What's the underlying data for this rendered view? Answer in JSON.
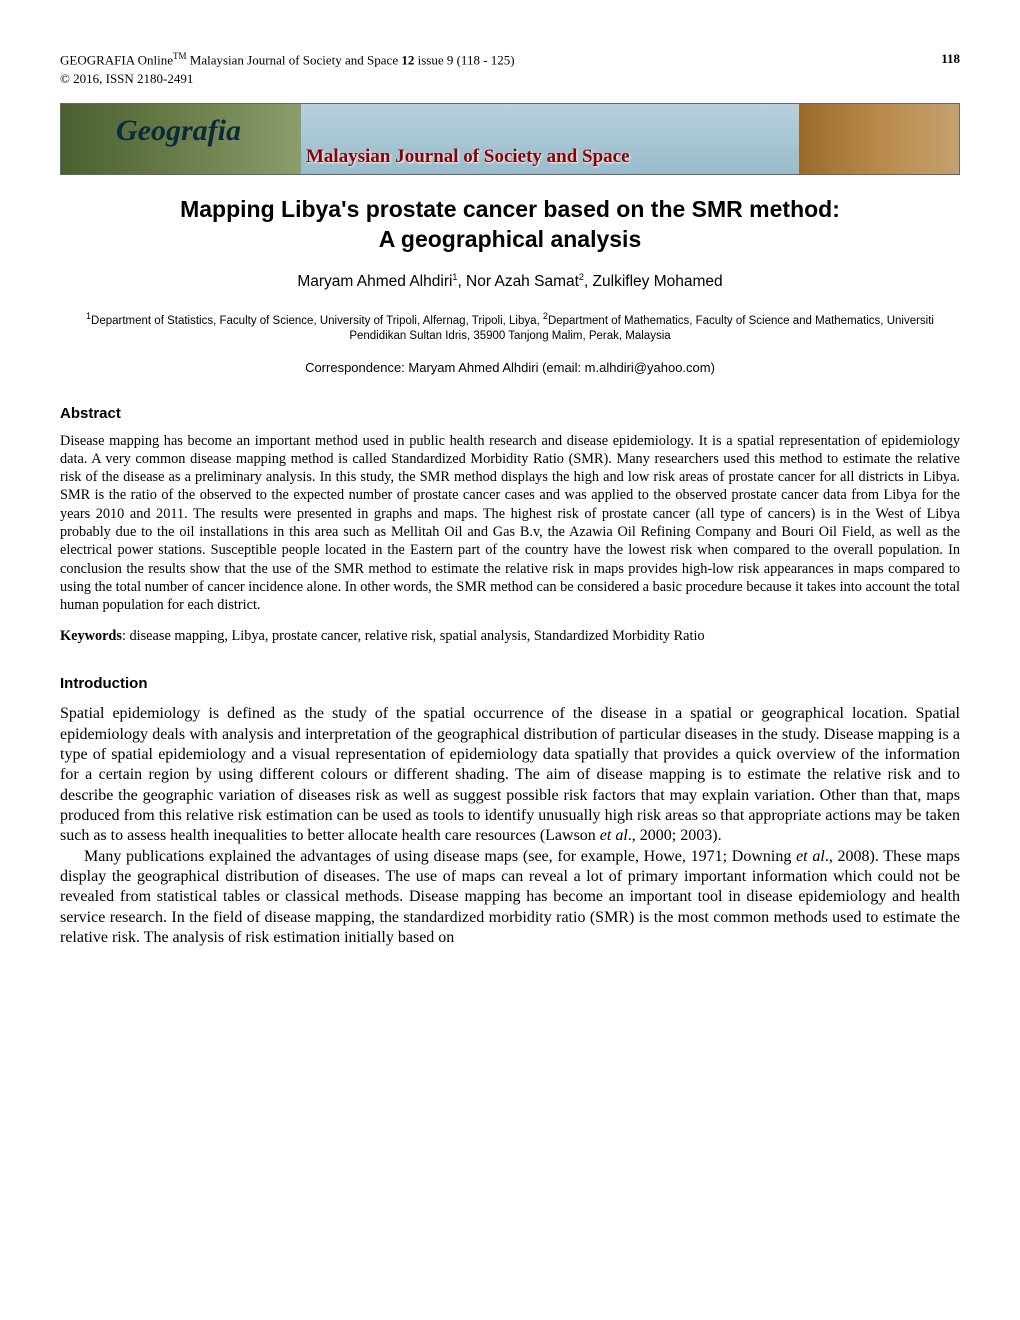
{
  "header": {
    "journal_prefix": "GEOGRAFIA Online",
    "tm": "TM",
    "journal_name": " Malaysian Journal of Society and Space ",
    "volume": "12",
    "issue_text": " issue 9 (118 - 125)",
    "page_number": "118",
    "copyright": "© 2016, ISSN 2180-2491"
  },
  "banner": {
    "geografia": "Geografia",
    "subtitle": "Malaysian Journal of Society and Space"
  },
  "title_line1": "Mapping Libya's prostate cancer based on the SMR method:",
  "title_line2": "A geographical analysis",
  "authors_html": "Maryam Ahmed Alhdiri",
  "author1_sup": "1",
  "author2": ", Nor Azah Samat",
  "author2_sup": "2",
  "author3": ", Zulkifley Mohamed",
  "affil_sup1": "1",
  "affil1": "Department of Statistics, Faculty of Science, University of Tripoli, Alfernag, Tripoli, Libya, ",
  "affil_sup2": "2",
  "affil2": "Department of Mathematics, Faculty of Science and Mathematics, Universiti Pendidikan Sultan Idris, 35900 Tanjong Malim, Perak, Malaysia",
  "correspondence": "Correspondence: Maryam Ahmed Alhdiri (email: m.alhdiri@yahoo.com)",
  "abstract_heading": "Abstract",
  "abstract_text": "Disease mapping has become an important method used in public health research and disease epidemiology. It is a spatial representation of epidemiology data. A very common disease mapping method is called Standardized Morbidity Ratio (SMR). Many researchers used this method to estimate the relative risk of the disease as a preliminary analysis.  In this study, the SMR method displays the high and low risk areas of prostate cancer for all districts in Libya. SMR is the ratio of the observed to the expected number of prostate cancer cases and was applied to the observed prostate cancer data from Libya for the years 2010 and 2011. The results were presented in graphs and maps. The highest risk of prostate cancer (all type of cancers) is in the West of Libya probably due to the oil installations in this area such as Mellitah Oil and Gas B.v, the Azawia Oil Refining Company and Bouri Oil Field, as well as the electrical power stations. Susceptible people  located in the Eastern part of the country have the lowest risk when compared to the overall population. In conclusion the results show that the use of the SMR method to estimate the relative risk in maps provides high-low risk appearances in maps compared to using the total number of cancer incidence alone. In other words,  the SMR method can be considered a basic procedure because it takes into account the total human population for each district.",
  "keywords_label": "Keywords",
  "keywords_text": ": disease mapping, Libya, prostate cancer, relative risk, spatial analysis, Standardized Morbidity Ratio",
  "intro_heading": "Introduction",
  "intro_p1a": "Spatial epidemiology is defined as the study of the spatial occurrence of the disease in a spatial or geographical location. Spatial epidemiology deals with analysis and interpretation of the geographical distribution of particular diseases in the study. Disease mapping is a type of spatial epidemiology and a visual representation of epidemiology data spatially that provides a quick overview of the information for a certain region by using different colours or different shading. The aim of disease mapping is to estimate the relative risk and to describe the geographic variation of diseases risk as well as suggest possible risk factors that may explain variation. Other than that, maps produced from this relative risk estimation can be used as tools to identify unusually high risk areas so that appropriate actions may be taken such as to assess health inequalities to better allocate health care resources (Lawson ",
  "intro_p1_etal": "et al",
  "intro_p1b": "., 2000; 2003).",
  "intro_p2a": "Many publications explained the advantages of using disease maps (see, for example, Howe, 1971; Downing ",
  "intro_p2_etal": "et al",
  "intro_p2b": "., 2008). These maps display the geographical distribution of diseases. The use of maps can reveal a lot of primary important information which could not be revealed from statistical tables or classical methods. Disease mapping has become an important tool in disease epidemiology and health service research. In the field of disease mapping, the standardized morbidity ratio (SMR) is the most common methods used to estimate the relative risk. The analysis of risk estimation initially based on"
}
